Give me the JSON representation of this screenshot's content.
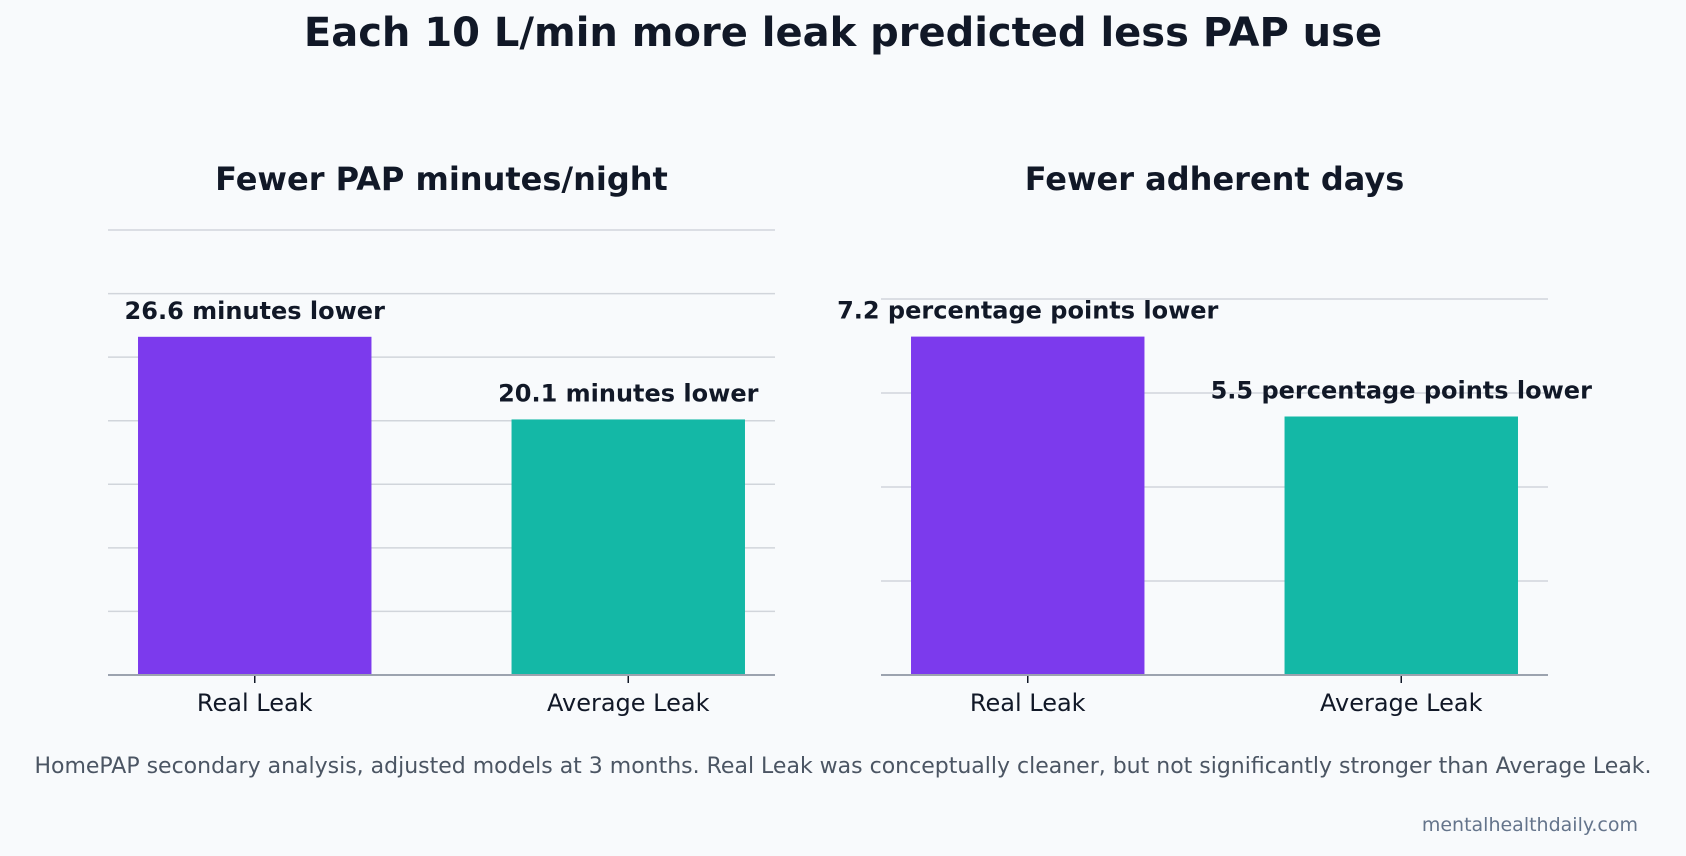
{
  "title": "Each 10 L/min more leak predicted less PAP use",
  "footnote": "HomePAP secondary analysis, adjusted models at 3 months. Real Leak was conceptually cleaner, but not significantly stronger than Average Leak.",
  "source": "mentalhealthdaily.com",
  "colors": {
    "real_leak": "#7c3aed",
    "average_leak": "#14b8a6",
    "grid": "#d1d5db",
    "axis": "#9ca3af"
  },
  "chart_data": [
    {
      "type": "bar",
      "title": "Fewer PAP minutes/night",
      "categories": [
        "Real Leak",
        "Average Leak"
      ],
      "values": [
        26.6,
        20.1
      ],
      "data_labels": [
        "26.6 minutes lower",
        "20.1 minutes lower"
      ],
      "ylim": [
        0,
        35
      ],
      "grid": true
    },
    {
      "type": "bar",
      "title": "Fewer adherent days",
      "categories": [
        "Real Leak",
        "Average Leak"
      ],
      "values": [
        7.2,
        5.5
      ],
      "data_labels": [
        "7.2 percentage points lower",
        "5.5 percentage points lower"
      ],
      "ylim": [
        0,
        8
      ],
      "grid": true
    }
  ]
}
